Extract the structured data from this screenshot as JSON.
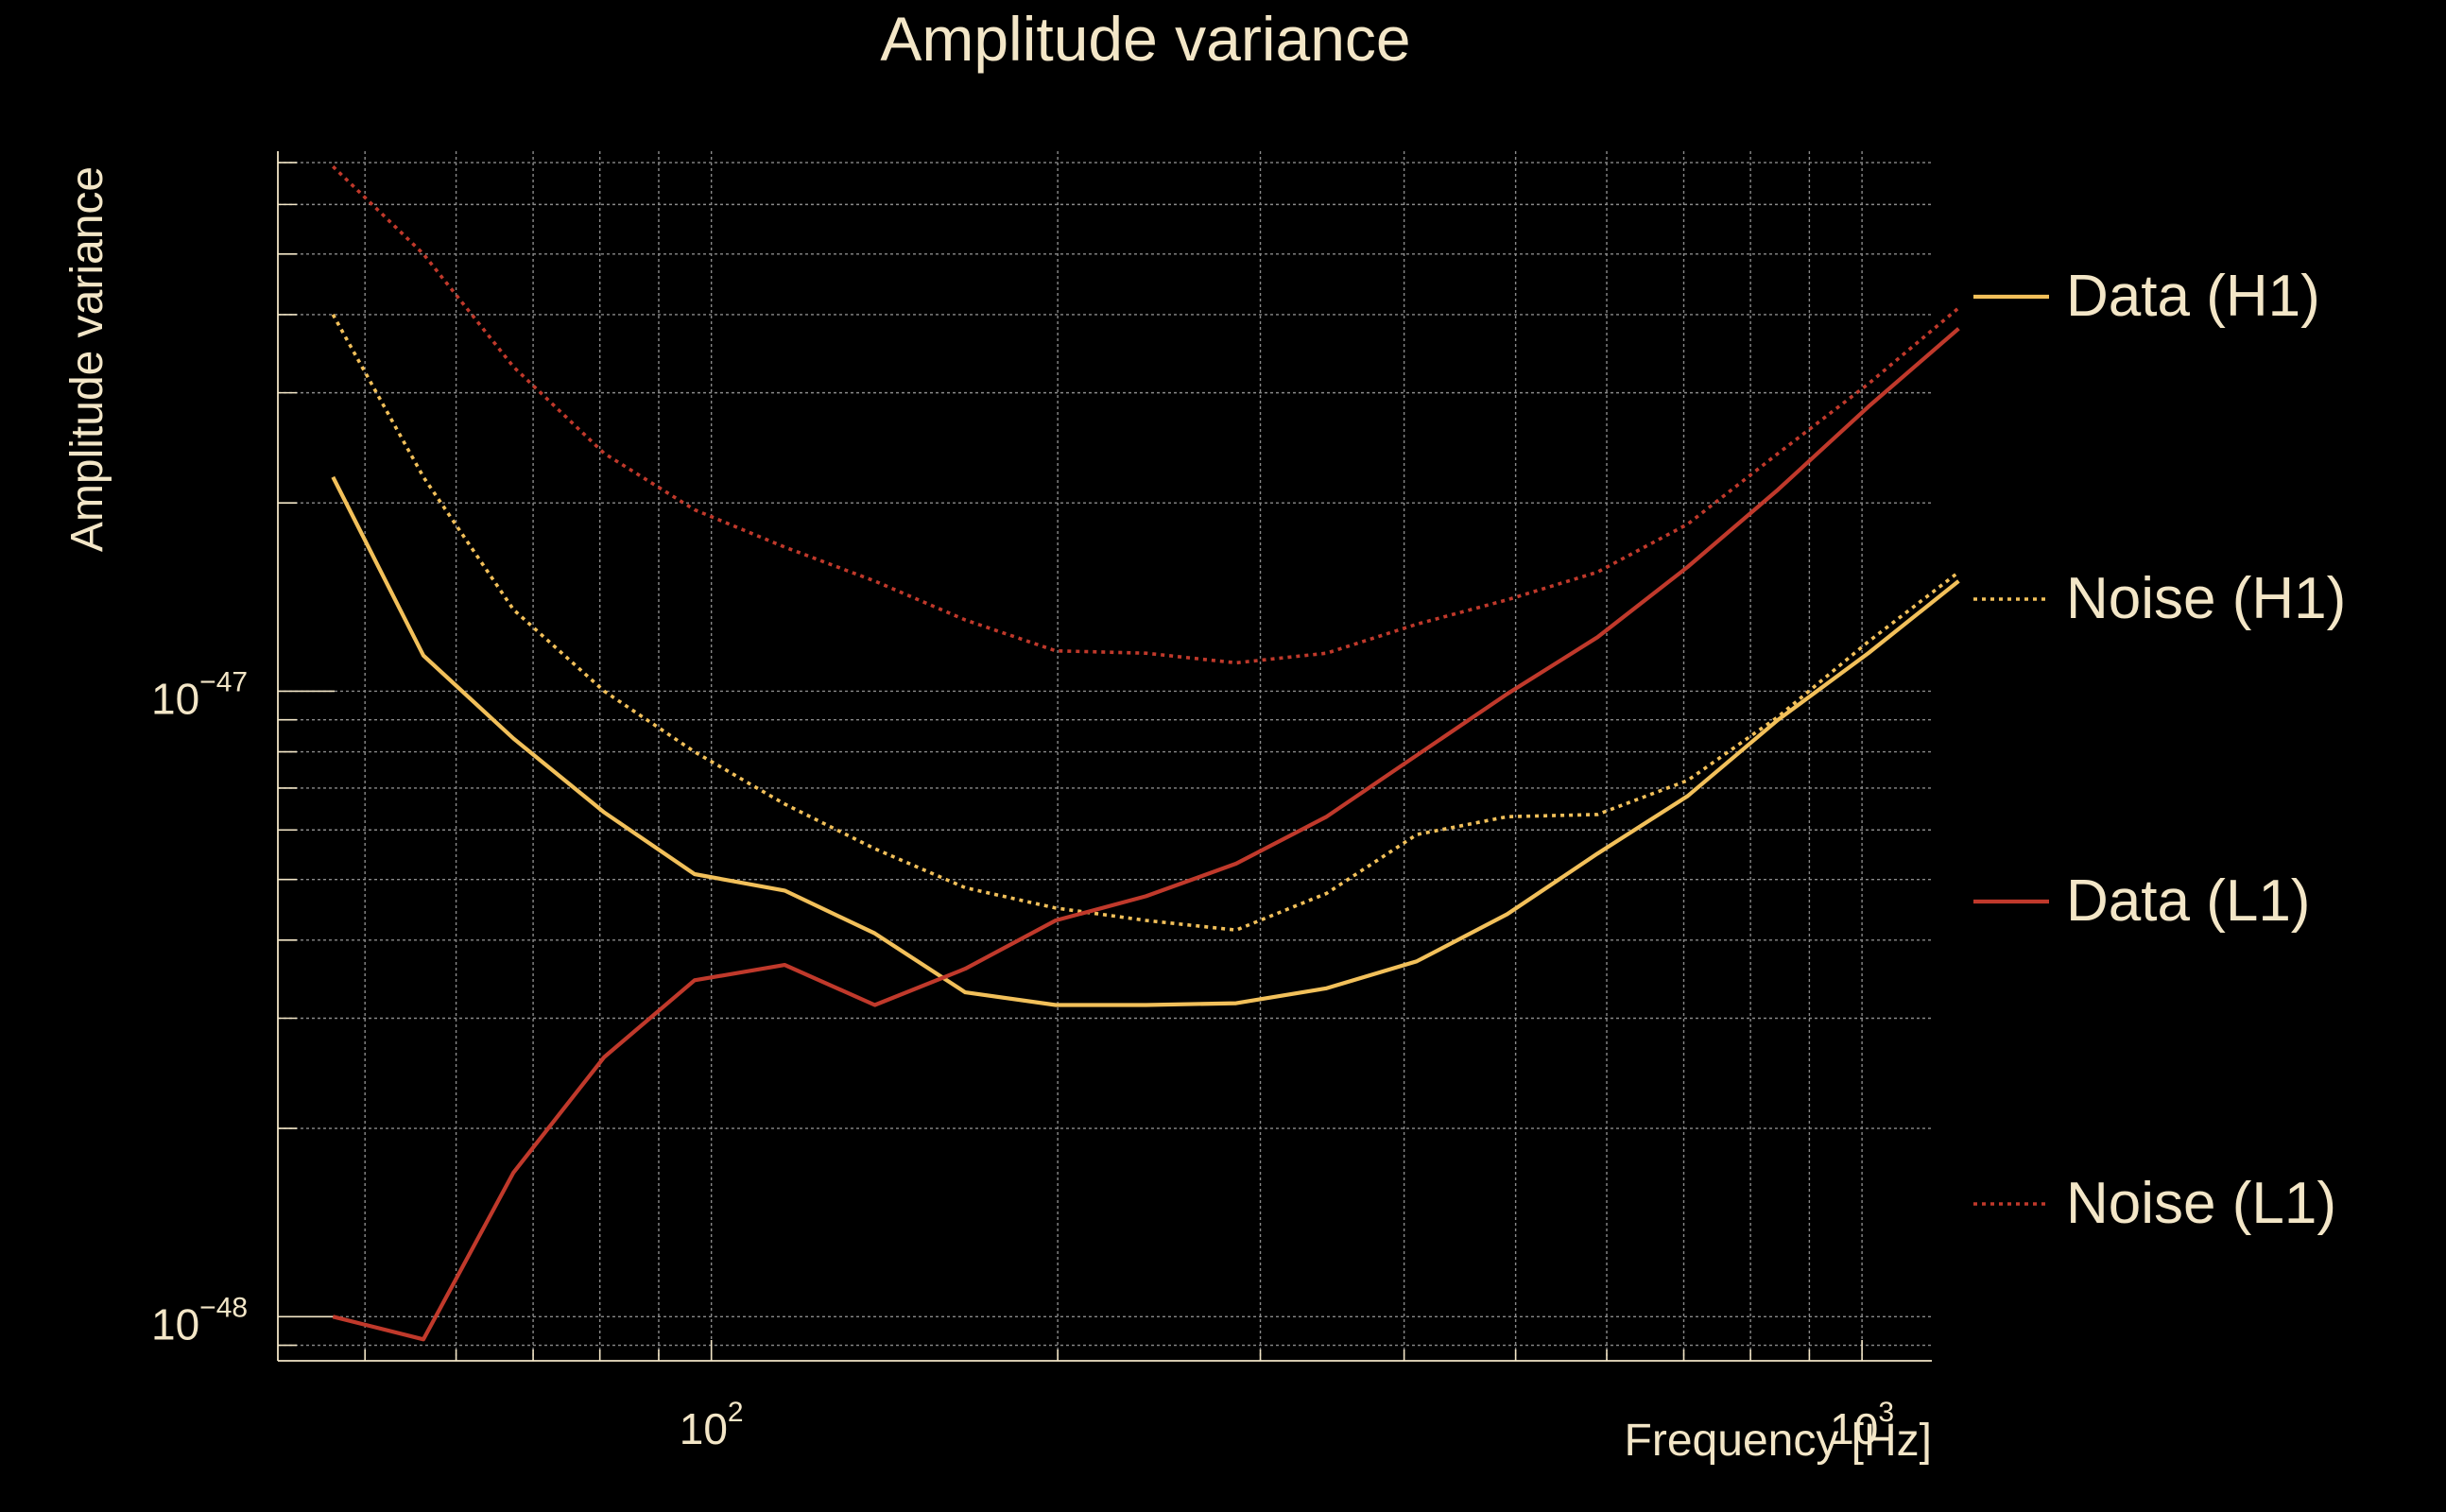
{
  "chart_data": {
    "type": "line",
    "title": "Amplitude variance",
    "xlabel": "Frequency [Hz]",
    "ylabel": "Amplitude variance",
    "x_scale": "log",
    "y_scale": "log",
    "xlim": [
      42,
      1150
    ],
    "ylim": [
      8.5e-49,
      7.3e-47
    ],
    "x_ticks": [
      {
        "base": "10",
        "exp": "2",
        "value": 100
      },
      {
        "base": "10",
        "exp": "3",
        "value": 1000
      }
    ],
    "y_ticks": [
      {
        "base": "10",
        "exp": "−48",
        "value": 1e-48
      },
      {
        "base": "10",
        "exp": "−47",
        "value": 1e-47
      }
    ],
    "grid": true,
    "legend_position": "right",
    "colors": {
      "background": "#000000",
      "text": "#f3e6c7",
      "grid": "#8a8a8a",
      "h1": "#f2c05a",
      "l1": "#c0392b"
    },
    "x": [
      46.9,
      56.2,
      67.3,
      80.7,
      96.7,
      115.8,
      138.7,
      166.2,
      199.2,
      238.6,
      285.8,
      342.5,
      410.3,
      491.6,
      589.0,
      705.6,
      845.4,
      1012.8,
      1213.5
    ],
    "series": [
      {
        "name": "Data (H1)",
        "color": "#f2c05a",
        "style": "solid",
        "values": [
          2.2e-47,
          1.14e-47,
          8.4e-48,
          6.4e-48,
          5.1e-48,
          4.8e-48,
          4.1e-48,
          3.3e-48,
          3.15e-48,
          3.15e-48,
          3.17e-48,
          3.35e-48,
          3.7e-48,
          4.4e-48,
          5.5e-48,
          6.8e-48,
          9e-48,
          1.15e-47,
          1.5e-47
        ]
      },
      {
        "name": "Noise (H1)",
        "color": "#f2c05a",
        "style": "dotted",
        "values": [
          4e-47,
          2.2e-47,
          1.35e-47,
          1e-47,
          8e-48,
          6.6e-48,
          5.6e-48,
          4.85e-48,
          4.5e-48,
          4.3e-48,
          4.15e-48,
          4.75e-48,
          5.9e-48,
          6.3e-48,
          6.35e-48,
          7.2e-48,
          9.1e-48,
          1.2e-47,
          1.55e-47
        ]
      },
      {
        "name": "Data (L1)",
        "color": "#c0392b",
        "style": "solid",
        "values": [
          1e-48,
          9.2e-49,
          1.7e-48,
          2.6e-48,
          3.45e-48,
          3.65e-48,
          3.15e-48,
          3.6e-48,
          4.3e-48,
          4.7e-48,
          5.3e-48,
          6.3e-48,
          7.9e-48,
          9.9e-48,
          1.22e-47,
          1.58e-47,
          2.1e-47,
          2.85e-47,
          3.8e-47
        ]
      },
      {
        "name": "Noise (L1)",
        "color": "#c0392b",
        "style": "dotted",
        "values": [
          6.9e-47,
          5e-47,
          3.3e-47,
          2.4e-47,
          1.95e-47,
          1.7e-47,
          1.5e-47,
          1.3e-47,
          1.16e-47,
          1.15e-47,
          1.11e-47,
          1.15e-47,
          1.28e-47,
          1.4e-47,
          1.55e-47,
          1.85e-47,
          2.4e-47,
          3.1e-47,
          4.1e-47
        ]
      }
    ]
  }
}
